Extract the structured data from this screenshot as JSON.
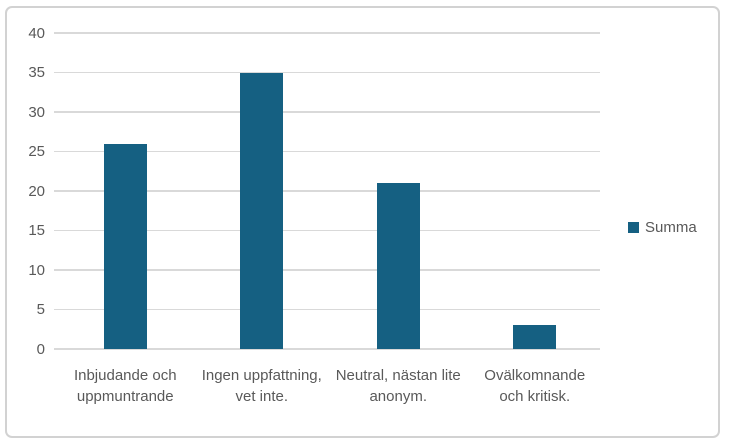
{
  "chart_data": {
    "type": "bar",
    "title": "",
    "categories": [
      "Inbjudande och uppmuntrande",
      "Ingen uppfattning, vet inte.",
      "Neutral, nästan lite anonym.",
      "Ovälkomnande och kritisk."
    ],
    "series": [
      {
        "name": "Summa",
        "values": [
          26,
          35,
          21,
          3
        ]
      }
    ],
    "xlabel": "",
    "ylabel": "",
    "ylim": [
      0,
      40
    ],
    "y_ticks": [
      0,
      5,
      10,
      15,
      20,
      25,
      30,
      35,
      40
    ],
    "grid": true,
    "legend_position": "right",
    "colors": {
      "bar": "#156082",
      "text": "#595959",
      "gridline": "#d9d9d9",
      "frame_border": "#d2d2d2",
      "background": "#ffffff"
    }
  }
}
